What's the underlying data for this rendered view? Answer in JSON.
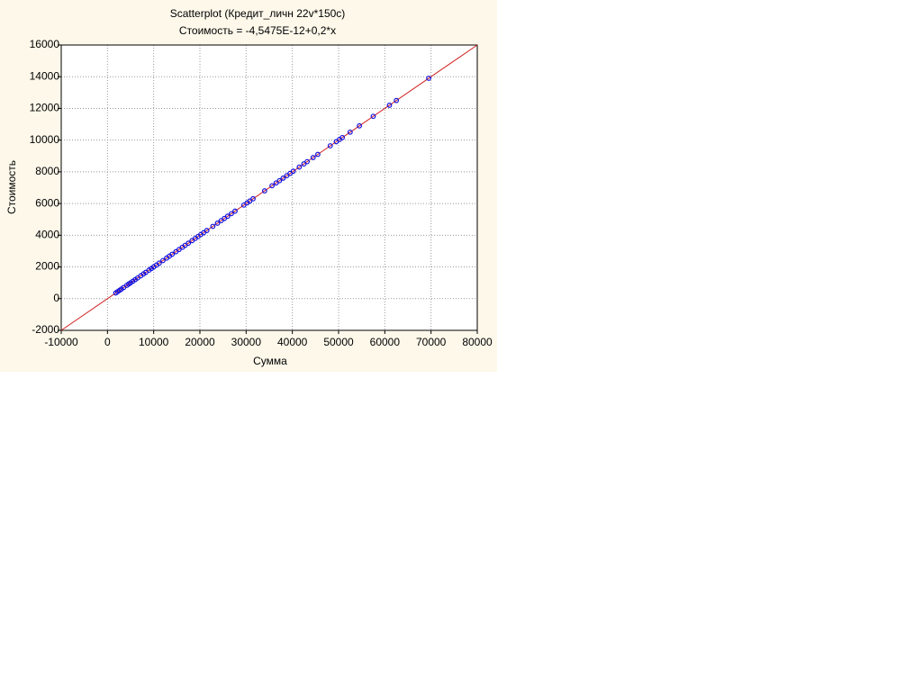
{
  "chart_data": {
    "type": "scatter",
    "title": "Scatterplot (Кредит_личн 22v*150c)",
    "subtitle": "Стоимость = -4,5475E-12+0,2*x",
    "x_label": "Сумма",
    "y_label": "Стоимость",
    "fit": {
      "intercept": -4.5475e-12,
      "slope": 0.2,
      "color": "#d02020"
    },
    "color": "#1010e0",
    "grid": true,
    "xlim": [
      -10000,
      80000
    ],
    "ylim": [
      -2000,
      16000
    ],
    "xticks": [
      -10000,
      0,
      10000,
      20000,
      30000,
      40000,
      50000,
      60000,
      70000,
      80000
    ],
    "yticks": [
      -2000,
      0,
      2000,
      4000,
      6000,
      8000,
      10000,
      12000,
      14000,
      16000
    ],
    "x": [
      1800,
      2200,
      2600,
      3000,
      3500,
      4200,
      4600,
      5000,
      5500,
      6000,
      6500,
      7200,
      7800,
      8300,
      9000,
      9500,
      10000,
      10600,
      11200,
      12000,
      12800,
      13400,
      14000,
      14800,
      15500,
      16200,
      16800,
      17500,
      18300,
      19000,
      19600,
      20200,
      20800,
      21500,
      22800,
      23800,
      24600,
      25300,
      26000,
      26800,
      27600,
      29500,
      30200,
      30800,
      31500,
      34000,
      35600,
      36500,
      37200,
      38000,
      38800,
      39500,
      40200,
      41500,
      42500,
      43200,
      44500,
      45500,
      48200,
      49500,
      50200,
      50800,
      52500,
      54500,
      57500,
      61000,
      62500,
      69500
    ],
    "values": [
      360,
      440,
      520,
      600,
      700,
      840,
      920,
      1000,
      1100,
      1200,
      1300,
      1440,
      1560,
      1660,
      1800,
      1900,
      2000,
      2120,
      2240,
      2400,
      2560,
      2680,
      2800,
      2960,
      3100,
      3240,
      3360,
      3500,
      3660,
      3800,
      3920,
      4040,
      4160,
      4300,
      4560,
      4760,
      4920,
      5060,
      5200,
      5360,
      5520,
      5900,
      6040,
      6160,
      6300,
      6800,
      7120,
      7300,
      7440,
      7600,
      7760,
      7900,
      8040,
      8300,
      8500,
      8640,
      8900,
      9100,
      9640,
      9900,
      10040,
      10160,
      10500,
      10900,
      11500,
      12200,
      12500,
      13900
    ]
  }
}
